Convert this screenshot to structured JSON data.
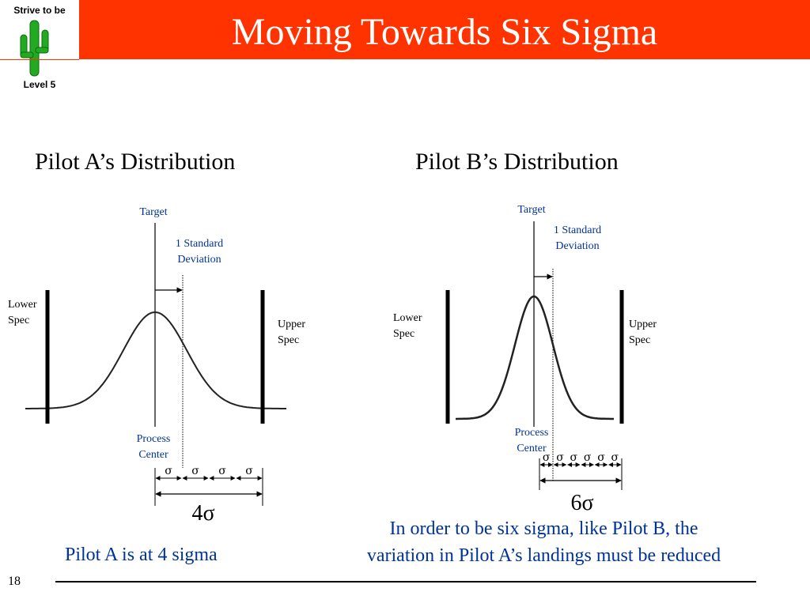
{
  "logo": {
    "top_text": "Strive to be",
    "bottom_text": "Level 5",
    "icon": "cactus-icon",
    "cactus_color": "#22aa22"
  },
  "title": "Moving Towards Six Sigma",
  "title_bar_color": "#ff3300",
  "pilot_a": {
    "heading": "Pilot A’s Distribution",
    "target_label": "Target",
    "std_dev_line1": "1 Standard",
    "std_dev_line2": "Deviation",
    "lower_spec_line1": "Lower",
    "lower_spec_line2": "Spec",
    "upper_spec_line1": "Upper",
    "upper_spec_line2": "Spec",
    "process_center_line1": "Process",
    "process_center_line2": "Center",
    "sigma_symbol": "σ",
    "sigma_count": 4,
    "total_label": "4σ"
  },
  "pilot_b": {
    "heading": "Pilot B’s Distribution",
    "target_label": "Target",
    "std_dev_line1": "1 Standard",
    "std_dev_line2": "Deviation",
    "lower_spec_line1": "Lower",
    "lower_spec_line2": "Spec",
    "upper_spec_line1": "Upper",
    "upper_spec_line2": "Spec",
    "process_center_line1": "Process",
    "process_center_line2": "Center",
    "sigma_symbol": "σ",
    "sigma_count": 6,
    "total_label": "6σ"
  },
  "conclusion_a": "Pilot A is at 4 sigma",
  "conclusion_b_line1": "In order to be six sigma, like Pilot B, the",
  "conclusion_b_line2": "variation in Pilot A’s landings must be reduced",
  "text_blue": "#003399",
  "slide_number": "18"
}
